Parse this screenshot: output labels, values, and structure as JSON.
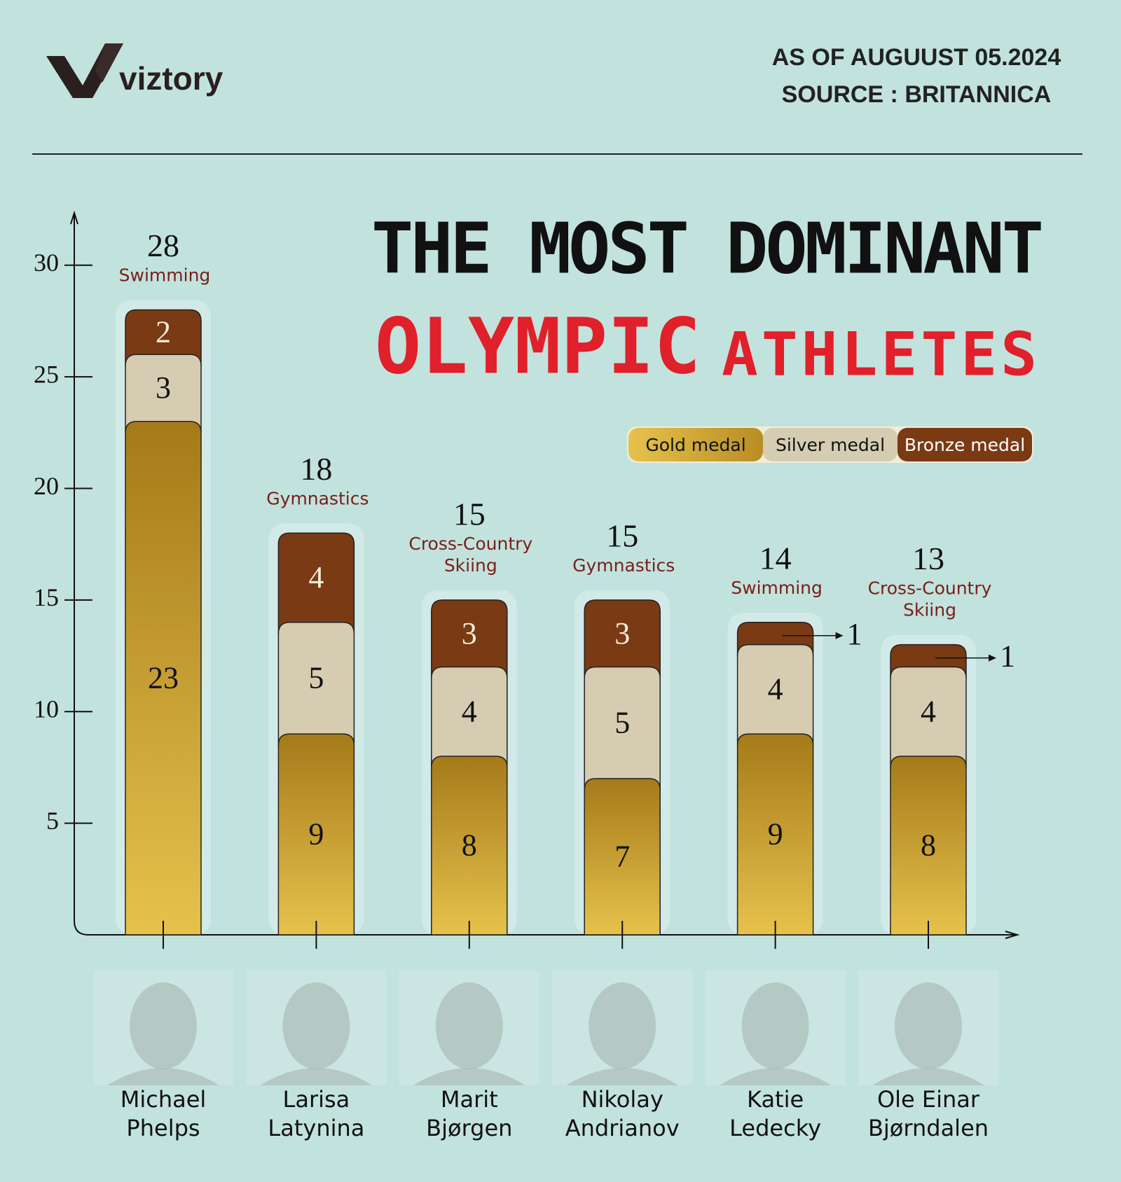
{
  "header": {
    "brand": "viztory",
    "date_note": "AS OF AUGUUST 05.2024",
    "source_note": "SOURCE : BRITANNICA"
  },
  "chart_data": {
    "type": "stacked-bar",
    "title": [
      "THE MOST DOMINANT",
      "OLYMPIC",
      "ATHLETES"
    ],
    "categories": [
      [
        "Michael",
        "Phelps"
      ],
      [
        "Larisa",
        "Latynina"
      ],
      [
        "Marit",
        "Bjørgen"
      ],
      [
        "Nikolay",
        "Andrianov"
      ],
      [
        "Katie",
        "Ledecky"
      ],
      [
        "Ole Einar",
        "Bjørndalen"
      ]
    ],
    "sports": [
      [
        "Swimming"
      ],
      [
        "Gymnastics"
      ],
      [
        "Cross-Country",
        "Skiing"
      ],
      [
        "Gymnastics"
      ],
      [
        "Swimming"
      ],
      [
        "Cross-Country",
        "Skiing"
      ]
    ],
    "totals": [
      28,
      18,
      15,
      15,
      14,
      13
    ],
    "series": [
      {
        "name": "Gold medal",
        "color": "#c9a23a",
        "values": [
          23,
          9,
          8,
          7,
          9,
          8
        ]
      },
      {
        "name": "Silver medal",
        "color": "#d6ccb2",
        "values": [
          3,
          5,
          4,
          5,
          4,
          4
        ]
      },
      {
        "name": "Bronze medal",
        "color": "#7a3a14",
        "values": [
          2,
          4,
          3,
          3,
          1,
          1
        ]
      }
    ],
    "ylim": [
      0,
      32
    ],
    "yticks": [
      5,
      10,
      15,
      20,
      25,
      30
    ]
  }
}
